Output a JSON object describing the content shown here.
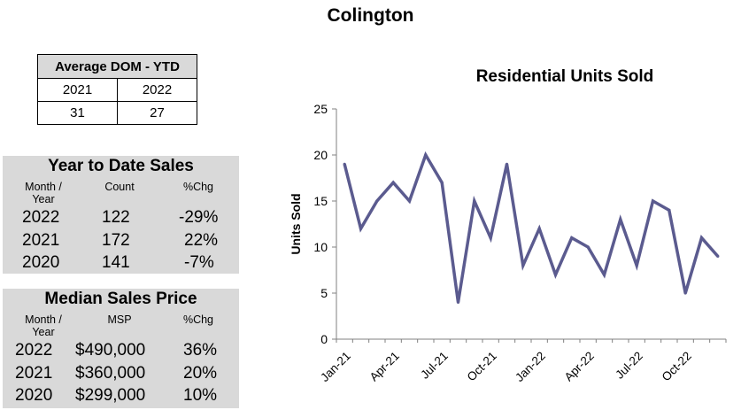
{
  "page_title": "Colington",
  "dom": {
    "title": "Average DOM - YTD",
    "years": [
      "2021",
      "2022"
    ],
    "values": [
      "31",
      "27"
    ]
  },
  "ytd": {
    "title": "Year to Date Sales",
    "headers": {
      "year": "Month / Year",
      "count": "Count",
      "chg": "%Chg"
    },
    "rows": [
      {
        "year": "2022",
        "value": "122",
        "chg": "-29%"
      },
      {
        "year": "2021",
        "value": "172",
        "chg": "22%"
      },
      {
        "year": "2020",
        "value": "141",
        "chg": "-7%"
      }
    ]
  },
  "msp": {
    "title": "Median Sales Price",
    "headers": {
      "year": "Month / Year",
      "count": "MSP",
      "chg": "%Chg"
    },
    "rows": [
      {
        "year": "2022",
        "value": "$490,000",
        "chg": "36%"
      },
      {
        "year": "2021",
        "value": "$360,000",
        "chg": "20%"
      },
      {
        "year": "2020",
        "value": "$299,000",
        "chg": "10%"
      }
    ]
  },
  "colors": {
    "line": "#5b5b8f",
    "panel": "#d9d9d9"
  },
  "chart_data": {
    "type": "line",
    "title": "Residential Units Sold",
    "xlabel": "",
    "ylabel": "Units Sold",
    "ylim": [
      0,
      25
    ],
    "yticks": [
      0,
      5,
      10,
      15,
      20,
      25
    ],
    "grid": false,
    "x": [
      "Jan-21",
      "Feb-21",
      "Mar-21",
      "Apr-21",
      "May-21",
      "Jun-21",
      "Jul-21",
      "Aug-21",
      "Sep-21",
      "Oct-21",
      "Nov-21",
      "Dec-21",
      "Jan-22",
      "Feb-22",
      "Mar-22",
      "Apr-22",
      "May-22",
      "Jun-22",
      "Jul-22",
      "Aug-22",
      "Sep-22",
      "Oct-22",
      "Nov-22",
      "Dec-22"
    ],
    "xtick_labels": [
      "Jan-21",
      "Apr-21",
      "Jul-21",
      "Oct-21",
      "Jan-22",
      "Apr-22",
      "Jul-22",
      "Oct-22"
    ],
    "series": [
      {
        "name": "Units Sold",
        "values": [
          19,
          12,
          15,
          17,
          15,
          20,
          17,
          4,
          15,
          11,
          19,
          8,
          12,
          7,
          11,
          10,
          7,
          13,
          8,
          15,
          14,
          5,
          11,
          9
        ]
      }
    ]
  }
}
